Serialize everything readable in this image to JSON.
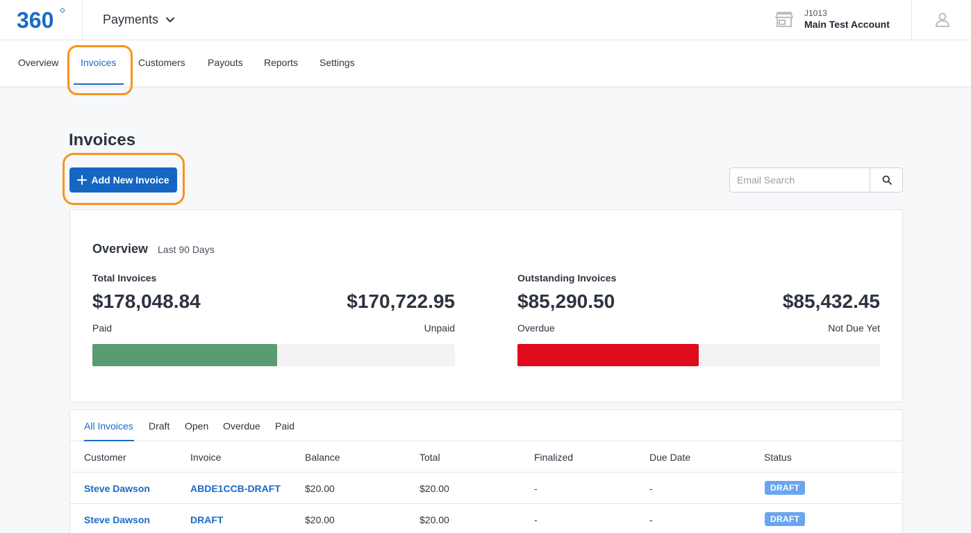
{
  "header": {
    "logo_text": "360",
    "app_name": "Payments",
    "account_id": "J1013",
    "account_name": "Main Test Account"
  },
  "nav": {
    "items": [
      {
        "label": "Overview",
        "active": false
      },
      {
        "label": "Invoices",
        "active": true
      },
      {
        "label": "Customers",
        "active": false
      },
      {
        "label": "Payouts",
        "active": false
      },
      {
        "label": "Reports",
        "active": false
      },
      {
        "label": "Settings",
        "active": false
      }
    ]
  },
  "page": {
    "title": "Invoices",
    "add_button_label": "Add New Invoice",
    "search_placeholder": "Email Search"
  },
  "overview": {
    "title": "Overview",
    "subtitle": "Last 90 Days",
    "total": {
      "label": "Total Invoices",
      "paid_amount": "$178,048.84",
      "paid_label": "Paid",
      "unpaid_amount": "$170,722.95",
      "unpaid_label": "Unpaid",
      "paid_fraction": 0.51
    },
    "outstanding": {
      "label": "Outstanding Invoices",
      "overdue_amount": "$85,290.50",
      "overdue_label": "Overdue",
      "not_due_amount": "$85,432.45",
      "not_due_label": "Not Due Yet",
      "overdue_fraction": 0.5
    }
  },
  "filters": {
    "tabs": [
      "All Invoices",
      "Draft",
      "Open",
      "Overdue",
      "Paid"
    ],
    "active": "All Invoices"
  },
  "table": {
    "columns": [
      "Customer",
      "Invoice",
      "Balance",
      "Total",
      "Finalized",
      "Due Date",
      "Status"
    ],
    "rows": [
      {
        "customer": "Steve Dawson",
        "invoice": "ABDE1CCB-DRAFT",
        "balance": "$20.00",
        "total": "$20.00",
        "finalized": "-",
        "due_date": "-",
        "status": "DRAFT"
      },
      {
        "customer": "Steve Dawson",
        "invoice": "DRAFT",
        "balance": "$20.00",
        "total": "$20.00",
        "finalized": "-",
        "due_date": "-",
        "status": "DRAFT"
      }
    ]
  },
  "colors": {
    "accent": "#1566c2",
    "paid_bar": "#5a9b72",
    "overdue_bar": "#e00b1c",
    "badge_draft": "#6aa5ef",
    "highlight": "#f7941d"
  },
  "icons": {
    "app_menu": "chevron-down-icon",
    "store": "store-icon",
    "user": "user-icon",
    "search": "search-icon",
    "add": "plus-icon"
  }
}
